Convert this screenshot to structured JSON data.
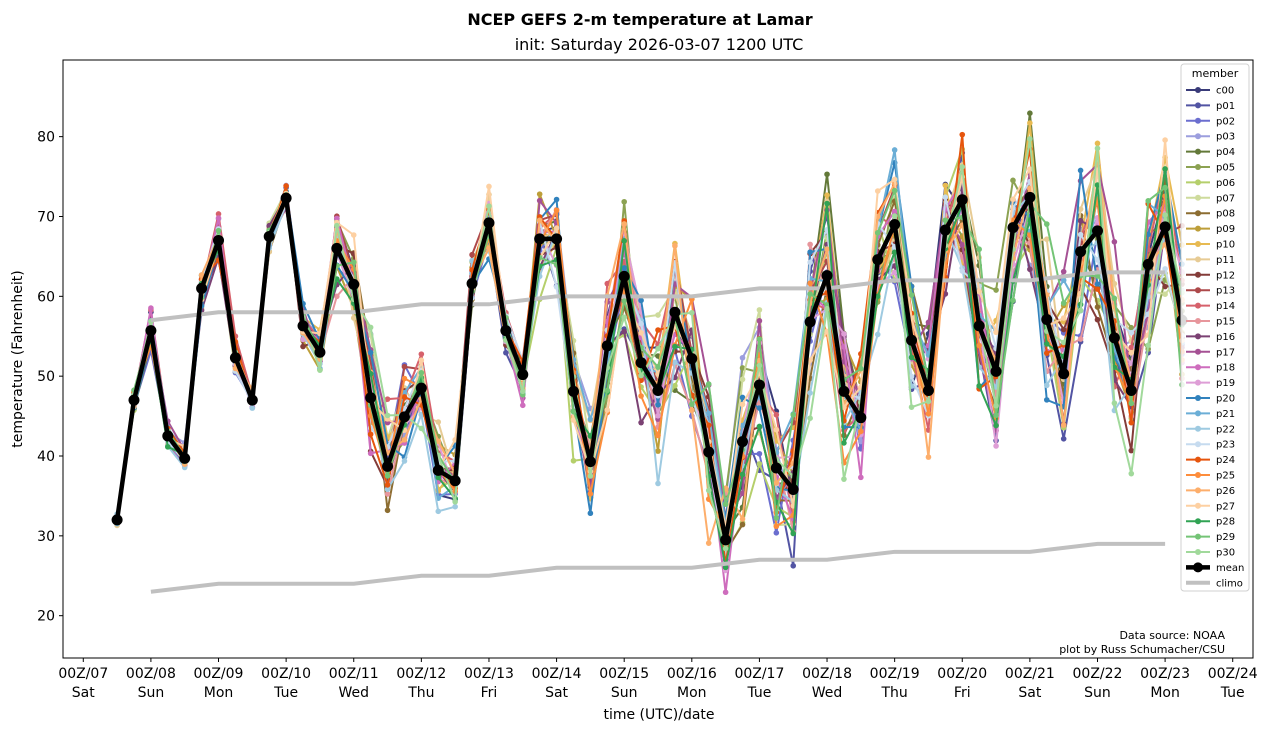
{
  "chart_data": {
    "type": "line",
    "title": "NCEP GEFS 2-m temperature at Lamar",
    "subtitle": "init: Saturday 2026-03-07 1200 UTC",
    "xlabel": "time (UTC)/date",
    "ylabel": "temperature (Fahrenheit)",
    "ylim": [
      14.7,
      89.6
    ],
    "xlim_days": [
      -0.3,
      17.3
    ],
    "grid": false,
    "legend": {
      "title": "member",
      "position": "top-right"
    },
    "yticks": [
      20,
      30,
      40,
      50,
      60,
      70,
      80
    ],
    "xticks": [
      {
        "day": 0,
        "label1": "00Z/07",
        "label2": "Sat"
      },
      {
        "day": 1,
        "label1": "00Z/08",
        "label2": "Sun"
      },
      {
        "day": 2,
        "label1": "00Z/09",
        "label2": "Mon"
      },
      {
        "day": 3,
        "label1": "00Z/10",
        "label2": "Tue"
      },
      {
        "day": 4,
        "label1": "00Z/11",
        "label2": "Wed"
      },
      {
        "day": 5,
        "label1": "00Z/12",
        "label2": "Thu"
      },
      {
        "day": 6,
        "label1": "00Z/13",
        "label2": "Fri"
      },
      {
        "day": 7,
        "label1": "00Z/14",
        "label2": "Sat"
      },
      {
        "day": 8,
        "label1": "00Z/15",
        "label2": "Sun"
      },
      {
        "day": 9,
        "label1": "00Z/16",
        "label2": "Mon"
      },
      {
        "day": 10,
        "label1": "00Z/17",
        "label2": "Tue"
      },
      {
        "day": 11,
        "label1": "00Z/18",
        "label2": "Wed"
      },
      {
        "day": 12,
        "label1": "00Z/19",
        "label2": "Thu"
      },
      {
        "day": 13,
        "label1": "00Z/20",
        "label2": "Fri"
      },
      {
        "day": 14,
        "label1": "00Z/21",
        "label2": "Sat"
      },
      {
        "day": 15,
        "label1": "00Z/22",
        "label2": "Sun"
      },
      {
        "day": 16,
        "label1": "00Z/23",
        "label2": "Mon"
      },
      {
        "day": 17,
        "label1": "00Z/24",
        "label2": "Tue"
      }
    ],
    "time_start_day": 0.5,
    "time_step_hours": 6,
    "mean": {
      "name": "mean",
      "color": "#000000",
      "values": [
        32.0,
        47.0,
        55.7,
        42.5,
        39.7,
        61.0,
        67.0,
        52.3,
        47.0,
        67.5,
        72.3,
        56.3,
        53.0,
        66.0,
        61.5,
        47.3,
        38.7,
        44.9,
        48.5,
        38.2,
        36.9,
        61.6,
        69.2,
        55.7,
        50.2,
        67.2,
        67.2,
        48.1,
        39.3,
        53.8,
        62.5,
        51.7,
        48.2,
        58.0,
        52.2,
        40.5,
        29.5,
        41.8,
        48.9,
        38.5,
        35.8,
        56.8,
        62.6,
        48.1,
        44.8,
        64.6,
        69.0,
        54.5,
        48.2,
        68.3,
        72.1,
        56.3,
        50.6,
        68.6,
        72.4,
        57.1,
        50.3,
        65.6,
        68.2,
        54.8,
        48.2,
        64.0,
        68.7,
        57.0
      ]
    },
    "climo": {
      "name": "climo",
      "color": "#c0c0c0",
      "days": [
        1,
        2,
        3,
        4,
        5,
        6,
        7,
        8,
        9,
        10,
        11,
        12,
        13,
        14,
        15,
        16
      ],
      "max": [
        57,
        58,
        58,
        58,
        59,
        59,
        60,
        60,
        60,
        61,
        61,
        62,
        62,
        62,
        63,
        63
      ],
      "min": [
        23,
        24,
        24,
        24,
        25,
        25,
        26,
        26,
        26,
        27,
        27,
        28,
        28,
        28,
        29,
        29
      ]
    },
    "members": [
      {
        "name": "c00",
        "color": "#393b79"
      },
      {
        "name": "p01",
        "color": "#5254a3"
      },
      {
        "name": "p02",
        "color": "#6b6ecf"
      },
      {
        "name": "p03",
        "color": "#9c9ede"
      },
      {
        "name": "p04",
        "color": "#637939"
      },
      {
        "name": "p05",
        "color": "#8ca252"
      },
      {
        "name": "p06",
        "color": "#b5cf6b"
      },
      {
        "name": "p07",
        "color": "#cedb9c"
      },
      {
        "name": "p08",
        "color": "#8c6d31"
      },
      {
        "name": "p09",
        "color": "#bd9e39"
      },
      {
        "name": "p10",
        "color": "#e7ba52"
      },
      {
        "name": "p11",
        "color": "#e7cb94"
      },
      {
        "name": "p12",
        "color": "#843c39"
      },
      {
        "name": "p13",
        "color": "#ad494a"
      },
      {
        "name": "p14",
        "color": "#d6616b"
      },
      {
        "name": "p15",
        "color": "#e7969c"
      },
      {
        "name": "p16",
        "color": "#7b4173"
      },
      {
        "name": "p17",
        "color": "#a55194"
      },
      {
        "name": "p18",
        "color": "#ce6dbd"
      },
      {
        "name": "p19",
        "color": "#de9ed6"
      },
      {
        "name": "p20",
        "color": "#3182bd"
      },
      {
        "name": "p21",
        "color": "#6baed6"
      },
      {
        "name": "p22",
        "color": "#9ecae1"
      },
      {
        "name": "p23",
        "color": "#c6dbef"
      },
      {
        "name": "p24",
        "color": "#e6550d"
      },
      {
        "name": "p25",
        "color": "#fd8d3c"
      },
      {
        "name": "p26",
        "color": "#fdae6b"
      },
      {
        "name": "p27",
        "color": "#fdd0a2"
      },
      {
        "name": "p28",
        "color": "#31a354"
      },
      {
        "name": "p29",
        "color": "#74c476"
      },
      {
        "name": "p30",
        "color": "#a1d99b"
      }
    ],
    "member_spread": [
      0.6,
      1.4,
      2.2,
      1.6,
      1.2,
      2.4,
      2.6,
      2.0,
      1.2,
      1.6,
      1.6,
      2.4,
      2.4,
      5.0,
      6.0,
      6.5,
      6.0,
      5.0,
      5.0,
      4.0,
      3.5,
      3.5,
      3.5,
      2.5,
      2.5,
      4.5,
      4.5,
      5.5,
      6.0,
      8.0,
      9.0,
      7.0,
      7.5,
      8.5,
      9.0,
      9.0,
      6.0,
      9.0,
      9.0,
      7.0,
      7.0,
      9.0,
      9.0,
      8.0,
      7.0,
      8.0,
      7.0,
      7.5,
      8.5,
      7.5,
      8.0,
      9.0,
      9.0,
      8.0,
      8.5,
      9.0,
      11.0,
      9.0,
      9.0,
      9.0,
      8.0,
      9.0,
      9.0,
      8.0
    ],
    "credits": [
      "Data source: NOAA",
      "plot by Russ Schumacher/CSU"
    ]
  }
}
